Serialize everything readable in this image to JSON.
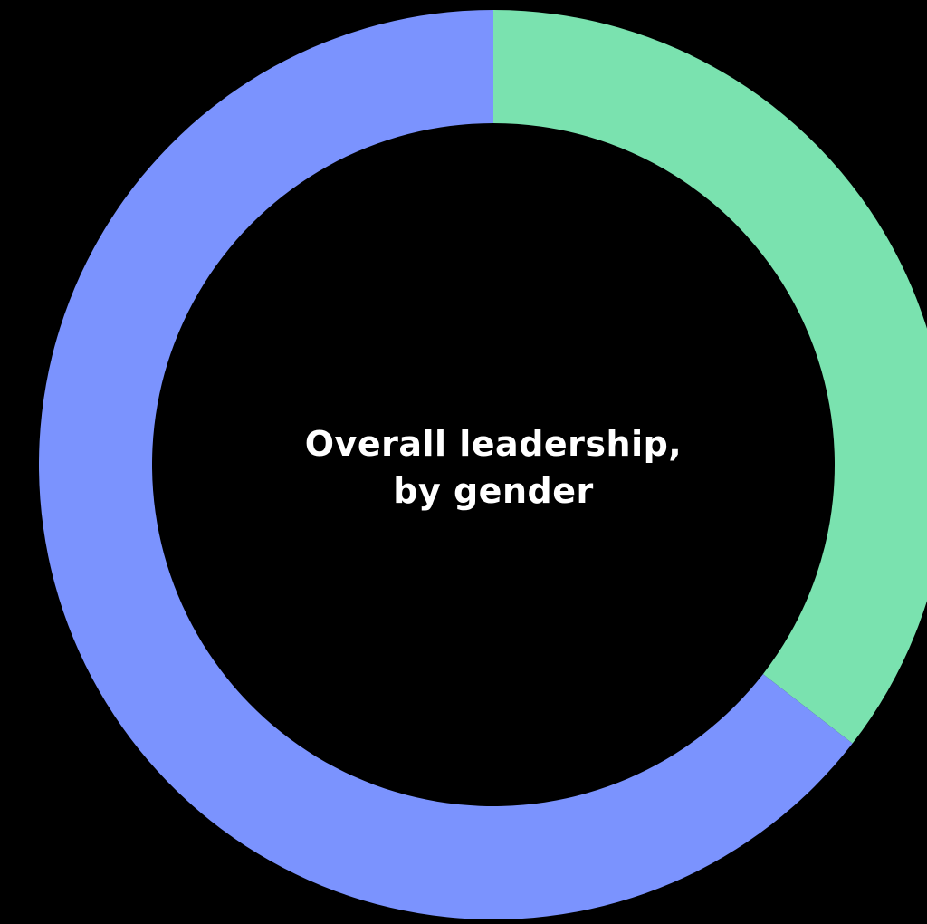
{
  "chart_data": {
    "type": "pie",
    "variant": "donut",
    "title_lines": [
      "Overall leadership,",
      "by gender"
    ],
    "legend": "none",
    "start_angle_deg": 0,
    "direction": "clockwise",
    "slices": [
      {
        "value": 35.5,
        "color": "#7ae2af"
      },
      {
        "value": 64.5,
        "color": "#7b93fe"
      }
    ],
    "background": "#000000"
  }
}
